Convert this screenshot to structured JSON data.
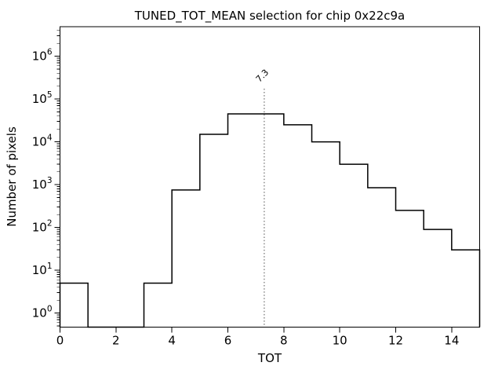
{
  "window": {
    "background": "#ffffff"
  },
  "chart_data": {
    "type": "bar",
    "variant": "step-histogram",
    "title": "TUNED_TOT_MEAN selection for chip 0x22c9a",
    "xlabel": "TOT",
    "ylabel": "Number of pixels",
    "yscale": "log",
    "grid": false,
    "legend": null,
    "xlim": [
      0,
      15
    ],
    "ylim": [
      0.47,
      4900000
    ],
    "x_ticks": [
      0,
      2,
      4,
      6,
      8,
      10,
      12,
      14
    ],
    "y_tick_exponents": [
      0,
      1,
      2,
      3,
      4,
      5,
      6
    ],
    "bin_edges": [
      0,
      1,
      2,
      3,
      4,
      5,
      6,
      7,
      8,
      9,
      10,
      11,
      12,
      13,
      14,
      15
    ],
    "counts": [
      5,
      0,
      0,
      5,
      750,
      15000,
      45000,
      45000,
      25000,
      10000,
      3000,
      850,
      250,
      90,
      30
    ],
    "vline": {
      "x": 7.3,
      "label": "7.3",
      "label_rotation_deg": -45,
      "top_value": 175000
    },
    "colors": {
      "histogram_line": "#000000",
      "vline": "#8a8a8a",
      "vline_label": "#8a8a8a",
      "axes": "#000000",
      "text": "#000000",
      "background": "#ffffff"
    }
  }
}
